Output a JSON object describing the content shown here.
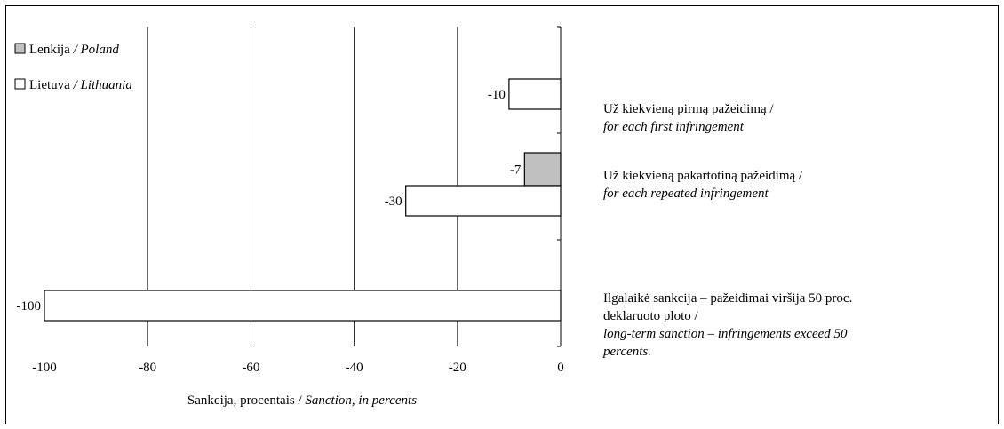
{
  "chart_data": {
    "type": "bar",
    "orientation": "horizontal",
    "xlabel": "Sankcija, procentais / ",
    "xlabel_italic": "Sanction, in percents",
    "xlim": [
      -100,
      0
    ],
    "xticks": [
      "-100",
      "-80",
      "-60",
      "-40",
      "-20",
      "0"
    ],
    "grid": true,
    "legend_position": "top-left",
    "categories": [
      {
        "lines": [
          "Už kiekvieną pirmą pažeidimą /"
        ],
        "lines_italic": [
          "for each first infringement"
        ]
      },
      {
        "lines": [
          "Už kiekvieną pakartotiną pažeidimą /"
        ],
        "lines_italic": [
          "for each repeated infringement"
        ]
      },
      {
        "lines": [
          "Ilgalaikė sankcija – pažeidimai viršija 50 proc.",
          "deklaruoto ploto /"
        ],
        "lines_italic": [
          " long-term sanction – infringements exceed 50",
          "percents."
        ]
      }
    ],
    "series": [
      {
        "name": "Lenkija",
        "name_italic": "  / Poland",
        "color": "#c0c0c0",
        "values": [
          null,
          -7,
          null
        ]
      },
      {
        "name": "Lietuva",
        "name_italic": " / Lithuania",
        "color": "#ffffff",
        "values": [
          -10,
          -30,
          -100
        ]
      }
    ],
    "data_labels": {
      "Lenkija": [
        null,
        "-7",
        null
      ],
      "Lietuva": [
        "-10",
        "-30",
        "-100"
      ]
    }
  }
}
